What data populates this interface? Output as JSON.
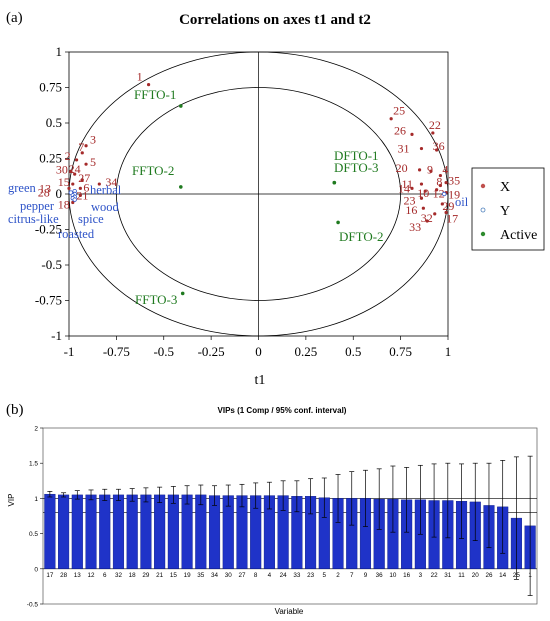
{
  "panel_labels": {
    "a": "(a)",
    "b": "(b)"
  },
  "chart_data": [
    {
      "type": "scatter",
      "title": "Correlations on axes t1 and t2",
      "xlabel": "t1",
      "ylabel": "",
      "xlim": [
        -1,
        1
      ],
      "ylim": [
        -1,
        1
      ],
      "x_ticks": [
        "-1",
        "-0.75",
        "-0.5",
        "-0.25",
        "0",
        "0.25",
        "0.5",
        "0.75",
        "1"
      ],
      "y_ticks": [
        "-1",
        "-0.75",
        "-0.5",
        "-0.25",
        "0",
        "0.25",
        "0.5",
        "0.75",
        "1"
      ],
      "circle_radii": [
        1,
        0.75
      ],
      "legend": {
        "placement": "right",
        "entries": [
          {
            "label": "X",
            "color": "#c0504d",
            "marker": "dot"
          },
          {
            "label": "Y",
            "color": "#4f81bd",
            "marker": "circle"
          },
          {
            "label": "Active",
            "color": "#2e8b2e",
            "marker": "dot"
          }
        ]
      },
      "colors": {
        "X": "#a52a2a",
        "Y": "#2f54c8",
        "Active": "#1f7a1f"
      },
      "active_points": [
        {
          "label": "FFTO-1",
          "x": -0.41,
          "y": 0.62
        },
        {
          "label": "FFTO-2",
          "x": -0.41,
          "y": 0.05
        },
        {
          "label": "FFTO-3",
          "x": -0.4,
          "y": -0.7
        },
        {
          "label": "DFTO-1",
          "x": 0.4,
          "y": 0.08
        },
        {
          "label": "DFTO-3",
          "x": 0.4,
          "y": 0.08
        },
        {
          "label": "DFTO-2",
          "x": 0.42,
          "y": -0.2
        }
      ],
      "y_points": [
        {
          "label": "herbal",
          "x": -0.97,
          "y": 0.02
        },
        {
          "label": "green",
          "x": -0.99,
          "y": 0.01
        },
        {
          "label": "wood",
          "x": -0.97,
          "y": 0.0
        },
        {
          "label": "pepper",
          "x": -0.98,
          "y": -0.01
        },
        {
          "label": "spice",
          "x": -0.97,
          "y": -0.02
        },
        {
          "label": "citrus-like",
          "x": -0.98,
          "y": -0.03
        },
        {
          "label": "roasted",
          "x": -0.97,
          "y": -0.04
        },
        {
          "label": "oil",
          "x": 0.98,
          "y": 0.0
        }
      ],
      "x_points": [
        {
          "label": "1",
          "x": -0.58,
          "y": 0.77
        },
        {
          "label": "3",
          "x": -0.91,
          "y": 0.34
        },
        {
          "label": "7",
          "x": -0.93,
          "y": 0.29
        },
        {
          "label": "2",
          "x": -0.96,
          "y": 0.24
        },
        {
          "label": "5",
          "x": -0.91,
          "y": 0.21
        },
        {
          "label": "30",
          "x": -0.99,
          "y": 0.16
        },
        {
          "label": "24",
          "x": -0.97,
          "y": 0.14
        },
        {
          "label": "27",
          "x": -0.93,
          "y": 0.1
        },
        {
          "label": "15",
          "x": -0.98,
          "y": 0.07
        },
        {
          "label": "13",
          "x": -1.0,
          "y": 0.04
        },
        {
          "label": "6",
          "x": -0.94,
          "y": 0.04
        },
        {
          "label": "34",
          "x": -0.84,
          "y": 0.07
        },
        {
          "label": "28",
          "x": -0.98,
          "y": 0.01
        },
        {
          "label": "21",
          "x": -0.94,
          "y": -0.01
        },
        {
          "label": "18",
          "x": -0.98,
          "y": -0.06
        },
        {
          "label": "25",
          "x": 0.7,
          "y": 0.53
        },
        {
          "label": "26",
          "x": 0.81,
          "y": 0.42
        },
        {
          "label": "22",
          "x": 0.92,
          "y": 0.43
        },
        {
          "label": "31",
          "x": 0.86,
          "y": 0.32
        },
        {
          "label": "36",
          "x": 0.94,
          "y": 0.31
        },
        {
          "label": "20",
          "x": 0.85,
          "y": 0.17
        },
        {
          "label": "9",
          "x": 0.91,
          "y": 0.16
        },
        {
          "label": "4",
          "x": 0.96,
          "y": 0.13
        },
        {
          "label": "11",
          "x": 0.86,
          "y": 0.07
        },
        {
          "label": "35",
          "x": 0.99,
          "y": 0.08
        },
        {
          "label": "8",
          "x": 0.96,
          "y": 0.06
        },
        {
          "label": "14",
          "x": 0.81,
          "y": 0.04
        },
        {
          "label": "10",
          "x": 0.88,
          "y": 0.02
        },
        {
          "label": "12",
          "x": 0.94,
          "y": 0.03
        },
        {
          "label": "19",
          "x": 0.99,
          "y": 0.01
        },
        {
          "label": "23",
          "x": 0.86,
          "y": -0.03
        },
        {
          "label": "16",
          "x": 0.87,
          "y": -0.1
        },
        {
          "label": "29",
          "x": 0.97,
          "y": -0.07
        },
        {
          "label": "32",
          "x": 0.93,
          "y": -0.14
        },
        {
          "label": "17",
          "x": 0.99,
          "y": -0.13
        },
        {
          "label": "33",
          "x": 0.89,
          "y": -0.19
        }
      ]
    },
    {
      "type": "bar",
      "title": "VIPs (1 Comp / 95% conf. interval)",
      "xlabel": "Variable",
      "ylabel": "VIP",
      "ylim": [
        -0.5,
        2
      ],
      "y_ticks": [
        "-0.5",
        "0",
        "0.5",
        "1",
        "1.5",
        "2"
      ],
      "reference_lines": [
        0.8,
        1.0
      ],
      "bar_color": "#1f33c8",
      "categories": [
        "17",
        "28",
        "13",
        "12",
        "6",
        "32",
        "18",
        "29",
        "21",
        "15",
        "19",
        "35",
        "34",
        "30",
        "27",
        "8",
        "4",
        "24",
        "33",
        "23",
        "5",
        "2",
        "7",
        "9",
        "36",
        "10",
        "16",
        "3",
        "22",
        "31",
        "11",
        "20",
        "26",
        "14",
        "25",
        "1"
      ],
      "values": [
        1.06,
        1.05,
        1.05,
        1.05,
        1.05,
        1.05,
        1.05,
        1.05,
        1.05,
        1.05,
        1.05,
        1.05,
        1.04,
        1.04,
        1.04,
        1.04,
        1.04,
        1.04,
        1.03,
        1.03,
        1.01,
        1.0,
        1.0,
        1.0,
        0.99,
        0.99,
        0.98,
        0.98,
        0.97,
        0.97,
        0.96,
        0.95,
        0.9,
        0.88,
        0.72,
        0.61
      ],
      "ci_low": [
        1.02,
        1.02,
        0.99,
        0.98,
        0.97,
        0.97,
        0.96,
        0.95,
        0.94,
        0.93,
        0.92,
        0.91,
        0.9,
        0.89,
        0.88,
        0.86,
        0.85,
        0.83,
        0.81,
        0.78,
        0.73,
        0.66,
        0.62,
        0.6,
        0.56,
        0.52,
        0.52,
        0.49,
        0.45,
        0.44,
        0.43,
        0.4,
        0.3,
        0.22,
        -0.15,
        -0.38
      ],
      "ci_high": [
        1.1,
        1.08,
        1.11,
        1.12,
        1.13,
        1.13,
        1.14,
        1.15,
        1.16,
        1.17,
        1.18,
        1.19,
        1.18,
        1.19,
        1.2,
        1.22,
        1.23,
        1.25,
        1.25,
        1.28,
        1.29,
        1.34,
        1.38,
        1.4,
        1.42,
        1.46,
        1.44,
        1.47,
        1.49,
        1.5,
        1.49,
        1.5,
        1.5,
        1.54,
        1.59,
        1.6
      ]
    }
  ]
}
